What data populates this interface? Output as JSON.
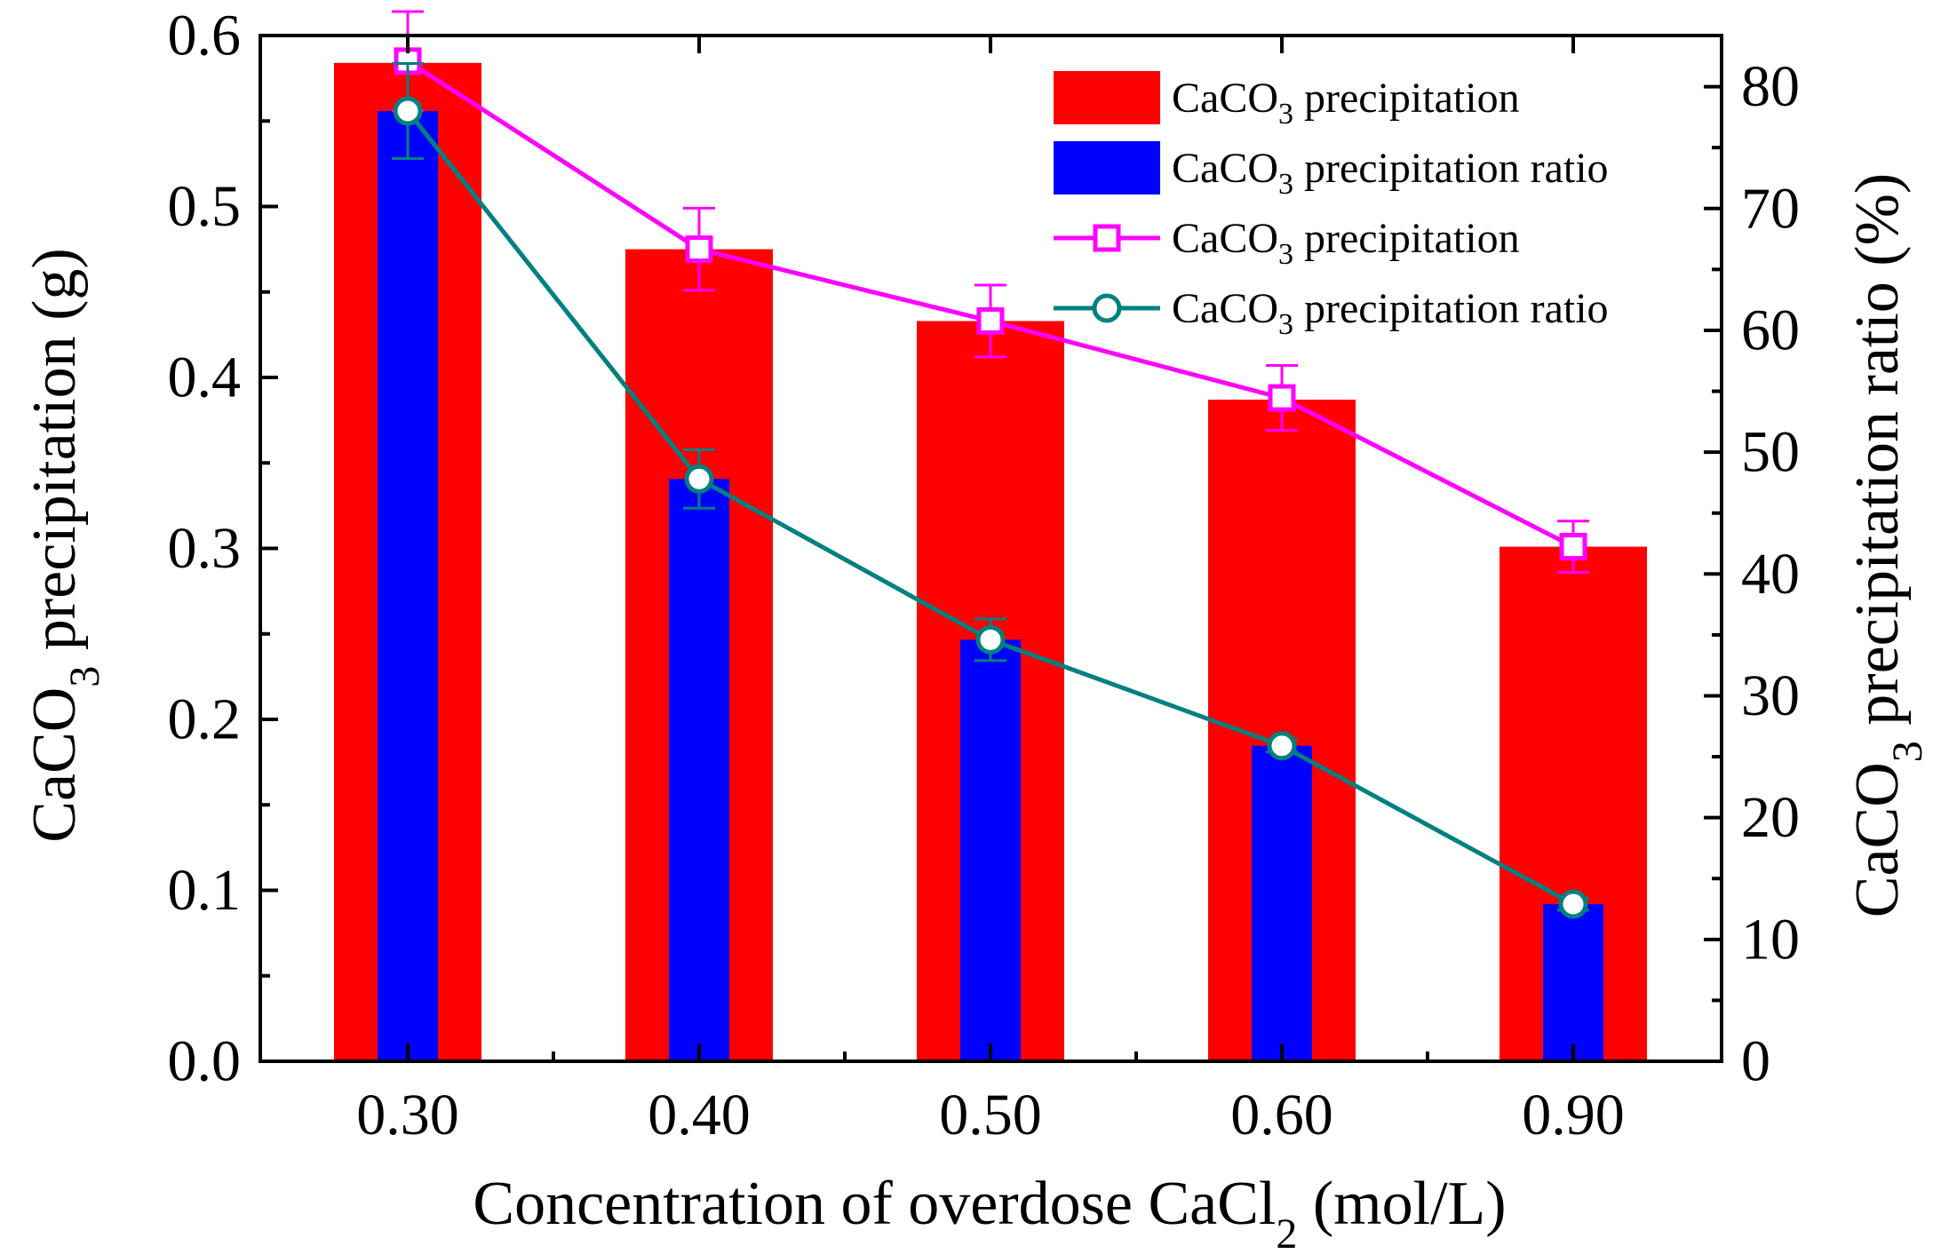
{
  "chart_data": {
    "type": "bar",
    "title": "",
    "xlabel": {
      "main": "Concentration of overdose CaCl",
      "sub": "2",
      "tail": " (mol/L)"
    },
    "ylabel_left": {
      "main": "CaCO",
      "sub": "3",
      "tail": " precipitation (g)"
    },
    "ylabel_right": {
      "main": "CaCO",
      "sub": "3",
      "tail": " precipitation ratio (%)"
    },
    "categories": [
      "0.30",
      "0.40",
      "0.50",
      "0.60",
      "0.90"
    ],
    "ylim_left": [
      0,
      0.6
    ],
    "ylim_right": [
      0,
      84.2
    ],
    "yticks_left": [
      "0.0",
      "0.1",
      "0.2",
      "0.3",
      "0.4",
      "0.5",
      "0.6"
    ],
    "yticks_right": [
      "0",
      "10",
      "20",
      "30",
      "40",
      "50",
      "60",
      "70",
      "80"
    ],
    "grid": false,
    "legend_position": "top-right",
    "series": [
      {
        "name": "CaCO3 precipitation",
        "label_main": "CaCO",
        "label_sub": "3",
        "label_tail": " precipitation",
        "kind": "bar",
        "axis": "left",
        "color": "#ff0000",
        "values": [
          0.584,
          0.475,
          0.433,
          0.387,
          0.301
        ]
      },
      {
        "name": "CaCO3 precipitation ratio",
        "label_main": "CaCO",
        "label_sub": "3",
        "label_tail": " precipitation ratio",
        "kind": "bar",
        "axis": "right",
        "color": "#0000ff",
        "values": [
          78.0,
          47.8,
          34.6,
          25.9,
          12.9
        ]
      },
      {
        "name": "CaCO3 precipitation",
        "label_main": "CaCO",
        "label_sub": "3",
        "label_tail": " precipitation",
        "kind": "line",
        "marker": "square",
        "axis": "left",
        "color": "#ff00ff",
        "values": [
          0.585,
          0.475,
          0.433,
          0.388,
          0.301
        ],
        "errors": [
          0.029,
          0.024,
          0.021,
          0.019,
          0.015
        ]
      },
      {
        "name": "CaCO3 precipitation ratio",
        "label_main": "CaCO",
        "label_sub": "3",
        "label_tail": " precipitation ratio",
        "kind": "line",
        "marker": "circle",
        "axis": "right",
        "color": "#008080",
        "values": [
          78.0,
          47.8,
          34.6,
          25.9,
          12.9
        ],
        "errors": [
          3.9,
          2.4,
          1.7,
          0.5,
          0.5
        ]
      }
    ]
  }
}
